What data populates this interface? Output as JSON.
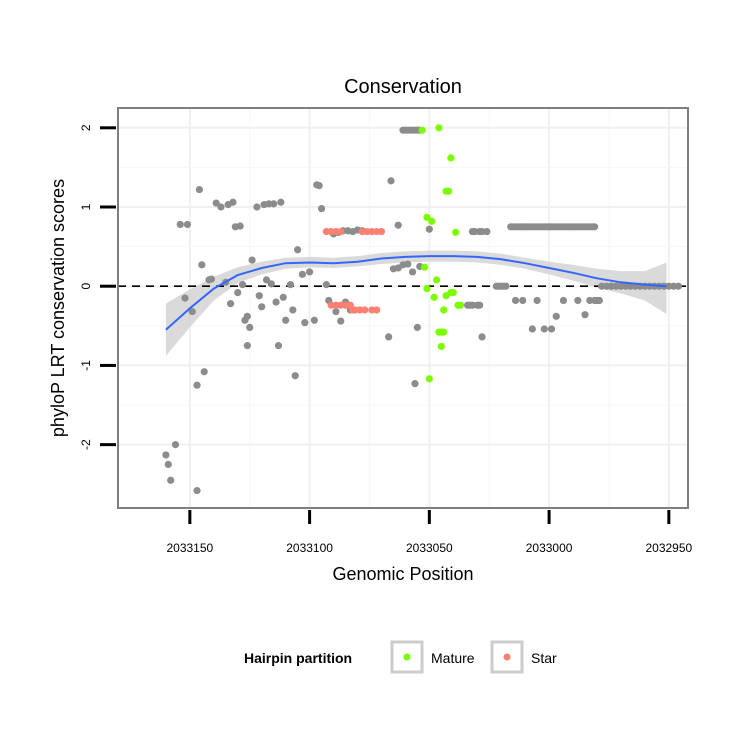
{
  "chart_data": {
    "type": "scatter",
    "title": "Conservation",
    "xlabel": "Genomic Position",
    "ylabel": "phyloP LRT conservation scores",
    "xlim": [
      2033180,
      2032942
    ],
    "ylim": [
      -2.8,
      2.25
    ],
    "x_reversed": true,
    "xticks": [
      2033150,
      2033100,
      2033050,
      2033000,
      2032950
    ],
    "xtick_labels": [
      "2033150",
      "2033100",
      "2033050",
      "2033000",
      "2032950"
    ],
    "yticks": [
      -2,
      -1,
      0,
      1,
      2
    ],
    "ytick_labels": [
      "-2",
      "-1",
      "0",
      "1",
      "2"
    ],
    "grid": true,
    "reference_line": {
      "y": 0,
      "style": "dashed"
    },
    "legend": {
      "title": "Hairpin partition",
      "position": "bottom",
      "entries": [
        {
          "label": "Mature",
          "color": "#7cfc00"
        },
        {
          "label": "Star",
          "color": "#fa8072"
        }
      ]
    },
    "colors": {
      "other": "#8c8c8c",
      "Mature": "#7cfc00",
      "Star": "#fa8072",
      "smooth": "#3366ff",
      "band": "#d3d3d3"
    },
    "series": [
      {
        "name": "Other",
        "points": [
          [
            2033160,
            -2.13
          ],
          [
            2033159,
            -2.25
          ],
          [
            2033158,
            -2.45
          ],
          [
            2033156,
            -2.0
          ],
          [
            2033147,
            -2.58
          ],
          [
            2033154,
            0.78
          ],
          [
            2033151,
            0.78
          ],
          [
            2033152,
            -0.15
          ],
          [
            2033149,
            -0.32
          ],
          [
            2033146,
            1.22
          ],
          [
            2033147,
            -1.25
          ],
          [
            2033144,
            -1.08
          ],
          [
            2033145,
            0.27
          ],
          [
            2033142,
            0.08
          ],
          [
            2033141,
            0.09
          ],
          [
            2033139,
            1.05
          ],
          [
            2033137,
            1.0
          ],
          [
            2033134,
            1.03
          ],
          [
            2033132,
            1.06
          ],
          [
            2033131,
            0.75
          ],
          [
            2033129,
            0.76
          ],
          [
            2033135,
            0.05
          ],
          [
            2033133,
            -0.22
          ],
          [
            2033130,
            -0.08
          ],
          [
            2033128,
            0.02
          ],
          [
            2033127,
            -0.43
          ],
          [
            2033126,
            -0.38
          ],
          [
            2033126,
            -0.75
          ],
          [
            2033125,
            -0.52
          ],
          [
            2033124,
            0.33
          ],
          [
            2033122,
            1.0
          ],
          [
            2033119,
            1.03
          ],
          [
            2033117,
            1.04
          ],
          [
            2033115,
            1.04
          ],
          [
            2033112,
            1.06
          ],
          [
            2033121,
            -0.12
          ],
          [
            2033120,
            -0.26
          ],
          [
            2033118,
            0.08
          ],
          [
            2033116,
            0.03
          ],
          [
            2033114,
            -0.2
          ],
          [
            2033113,
            -0.75
          ],
          [
            2033111,
            -0.14
          ],
          [
            2033110,
            -0.43
          ],
          [
            2033108,
            0.02
          ],
          [
            2033107,
            -0.3
          ],
          [
            2033105,
            0.46
          ],
          [
            2033106,
            -1.13
          ],
          [
            2033103,
            0.15
          ],
          [
            2033102,
            -0.46
          ],
          [
            2033100,
            0.18
          ],
          [
            2033098,
            -0.43
          ],
          [
            2033097,
            1.28
          ],
          [
            2033096,
            1.27
          ],
          [
            2033095,
            0.98
          ],
          [
            2033093,
            0.02
          ],
          [
            2033092,
            -0.18
          ],
          [
            2033090,
            0.66
          ],
          [
            2033088,
            0.68
          ],
          [
            2033086,
            0.7
          ],
          [
            2033084,
            0.7
          ],
          [
            2033082,
            0.69
          ],
          [
            2033089,
            -0.32
          ],
          [
            2033087,
            -0.44
          ],
          [
            2033085,
            -0.2
          ],
          [
            2033083,
            -0.3
          ],
          [
            2033080,
            0.71
          ],
          [
            2033078,
            0.7
          ],
          [
            2033066,
            1.33
          ],
          [
            2033063,
            0.77
          ],
          [
            2033061,
            1.97
          ],
          [
            2033060,
            1.97
          ],
          [
            2033059,
            1.97
          ],
          [
            2033058,
            1.97
          ],
          [
            2033057,
            1.97
          ],
          [
            2033056,
            1.97
          ],
          [
            2033055,
            1.97
          ],
          [
            2033054,
            1.97
          ],
          [
            2033065,
            0.22
          ],
          [
            2033063,
            0.23
          ],
          [
            2033061,
            0.27
          ],
          [
            2033059,
            0.28
          ],
          [
            2033057,
            0.18
          ],
          [
            2033055,
            -0.52
          ],
          [
            2033054,
            0.25
          ],
          [
            2033067,
            -0.64
          ],
          [
            2033056,
            -1.23
          ],
          [
            2033050,
            0.72
          ],
          [
            2033032,
            0.69
          ],
          [
            2033031,
            0.69
          ],
          [
            2033029,
            0.69
          ],
          [
            2033028,
            0.69
          ],
          [
            2033026,
            0.69
          ],
          [
            2033034,
            -0.24
          ],
          [
            2033033,
            -0.24
          ],
          [
            2033032,
            -0.24
          ],
          [
            2033030,
            -0.24
          ],
          [
            2033029,
            -0.24
          ],
          [
            2033028,
            -0.64
          ],
          [
            2033022,
            0.0
          ],
          [
            2033021,
            0.0
          ],
          [
            2033020,
            0.0
          ],
          [
            2033019,
            0.0
          ],
          [
            2033018,
            0.0
          ],
          [
            2033016,
            0.75
          ],
          [
            2033015,
            0.75
          ],
          [
            2033014,
            0.75
          ],
          [
            2033013,
            0.75
          ],
          [
            2033012,
            0.75
          ],
          [
            2033011,
            0.75
          ],
          [
            2033010,
            0.75
          ],
          [
            2033009,
            0.75
          ],
          [
            2033008,
            0.75
          ],
          [
            2033007,
            0.75
          ],
          [
            2033006,
            0.75
          ],
          [
            2033005,
            0.75
          ],
          [
            2033004,
            0.75
          ],
          [
            2033003,
            0.75
          ],
          [
            2033002,
            0.75
          ],
          [
            2033001,
            0.75
          ],
          [
            2033000,
            0.75
          ],
          [
            2032999,
            0.75
          ],
          [
            2032998,
            0.75
          ],
          [
            2032997,
            0.75
          ],
          [
            2032996,
            0.75
          ],
          [
            2032995,
            0.75
          ],
          [
            2032994,
            0.75
          ],
          [
            2032993,
            0.75
          ],
          [
            2032992,
            0.75
          ],
          [
            2032991,
            0.75
          ],
          [
            2032990,
            0.75
          ],
          [
            2032989,
            0.75
          ],
          [
            2032988,
            0.75
          ],
          [
            2032987,
            0.75
          ],
          [
            2032986,
            0.75
          ],
          [
            2032985,
            0.75
          ],
          [
            2032984,
            0.75
          ],
          [
            2032983,
            0.75
          ],
          [
            2032982,
            0.75
          ],
          [
            2032981,
            0.75
          ],
          [
            2033014,
            -0.18
          ],
          [
            2033011,
            -0.18
          ],
          [
            2033007,
            -0.54
          ],
          [
            2033005,
            -0.18
          ],
          [
            2033002,
            -0.54
          ],
          [
            2032999,
            -0.54
          ],
          [
            2032997,
            -0.38
          ],
          [
            2032994,
            -0.18
          ],
          [
            2032988,
            -0.18
          ],
          [
            2032985,
            -0.36
          ],
          [
            2032983,
            -0.18
          ],
          [
            2032981,
            -0.18
          ],
          [
            2032980,
            -0.18
          ],
          [
            2032979,
            -0.18
          ],
          [
            2032978,
            0.0
          ],
          [
            2032976,
            0.0
          ],
          [
            2032974,
            0.0
          ],
          [
            2032972,
            0.0
          ],
          [
            2032970,
            0.0
          ],
          [
            2032968,
            0.0
          ],
          [
            2032966,
            0.0
          ],
          [
            2032964,
            0.0
          ],
          [
            2032962,
            0.0
          ],
          [
            2032960,
            0.0
          ],
          [
            2032958,
            0.0
          ],
          [
            2032956,
            0.0
          ],
          [
            2032954,
            0.0
          ],
          [
            2032952,
            0.0
          ],
          [
            2032950,
            0.0
          ],
          [
            2032948,
            0.0
          ],
          [
            2032946,
            0.0
          ]
        ]
      },
      {
        "name": "Mature",
        "points": [
          [
            2033053,
            1.97
          ],
          [
            2033046,
            2.0
          ],
          [
            2033041,
            1.62
          ],
          [
            2033043,
            1.2
          ],
          [
            2033042,
            1.2
          ],
          [
            2033051,
            0.87
          ],
          [
            2033049,
            0.82
          ],
          [
            2033039,
            0.68
          ],
          [
            2033052,
            0.24
          ],
          [
            2033047,
            0.08
          ],
          [
            2033051,
            -0.03
          ],
          [
            2033048,
            -0.14
          ],
          [
            2033041,
            -0.08
          ],
          [
            2033040,
            -0.08
          ],
          [
            2033043,
            -0.12
          ],
          [
            2033038,
            -0.24
          ],
          [
            2033037,
            -0.24
          ],
          [
            2033044,
            -0.3
          ],
          [
            2033046,
            -0.58
          ],
          [
            2033045,
            -0.58
          ],
          [
            2033044,
            -0.58
          ],
          [
            2033045,
            -0.76
          ],
          [
            2033050,
            -1.17
          ]
        ]
      },
      {
        "name": "Star",
        "points": [
          [
            2033093,
            0.69
          ],
          [
            2033091,
            0.69
          ],
          [
            2033089,
            0.69
          ],
          [
            2033087,
            0.69
          ],
          [
            2033078,
            0.69
          ],
          [
            2033076,
            0.69
          ],
          [
            2033074,
            0.69
          ],
          [
            2033072,
            0.69
          ],
          [
            2033070,
            0.69
          ],
          [
            2033091,
            -0.24
          ],
          [
            2033089,
            -0.24
          ],
          [
            2033087,
            -0.24
          ],
          [
            2033085,
            -0.24
          ],
          [
            2033083,
            -0.24
          ],
          [
            2033082,
            -0.3
          ],
          [
            2033081,
            -0.3
          ],
          [
            2033079,
            -0.3
          ],
          [
            2033077,
            -0.3
          ],
          [
            2033074,
            -0.3
          ],
          [
            2033072,
            -0.3
          ]
        ]
      }
    ],
    "smooth_fit": {
      "method": "loess",
      "points": [
        [
          2033160,
          -0.55
        ],
        [
          2033150,
          -0.28
        ],
        [
          2033140,
          -0.03
        ],
        [
          2033130,
          0.14
        ],
        [
          2033120,
          0.23
        ],
        [
          2033110,
          0.29
        ],
        [
          2033100,
          0.3
        ],
        [
          2033090,
          0.29
        ],
        [
          2033080,
          0.31
        ],
        [
          2033070,
          0.35
        ],
        [
          2033060,
          0.37
        ],
        [
          2033050,
          0.38
        ],
        [
          2033040,
          0.38
        ],
        [
          2033030,
          0.37
        ],
        [
          2033020,
          0.34
        ],
        [
          2033010,
          0.29
        ],
        [
          2033000,
          0.23
        ],
        [
          2032990,
          0.17
        ],
        [
          2032980,
          0.1
        ],
        [
          2032970,
          0.05
        ],
        [
          2032960,
          0.02
        ],
        [
          2032951,
          0.0
        ]
      ],
      "lower": [
        [
          2033160,
          -0.88
        ],
        [
          2033150,
          -0.52
        ],
        [
          2033140,
          -0.18
        ],
        [
          2033130,
          0.04
        ],
        [
          2033120,
          0.15
        ],
        [
          2033110,
          0.22
        ],
        [
          2033100,
          0.24
        ],
        [
          2033090,
          0.23
        ],
        [
          2033080,
          0.25
        ],
        [
          2033070,
          0.28
        ],
        [
          2033060,
          0.3
        ],
        [
          2033050,
          0.31
        ],
        [
          2033040,
          0.31
        ],
        [
          2033030,
          0.3
        ],
        [
          2033020,
          0.27
        ],
        [
          2033010,
          0.22
        ],
        [
          2033000,
          0.15
        ],
        [
          2032990,
          0.07
        ],
        [
          2032980,
          -0.02
        ],
        [
          2032970,
          -0.09
        ],
        [
          2032960,
          -0.18
        ],
        [
          2032951,
          -0.35
        ]
      ],
      "upper": [
        [
          2033160,
          -0.22
        ],
        [
          2033150,
          -0.04
        ],
        [
          2033140,
          0.12
        ],
        [
          2033130,
          0.24
        ],
        [
          2033120,
          0.31
        ],
        [
          2033110,
          0.36
        ],
        [
          2033100,
          0.37
        ],
        [
          2033090,
          0.36
        ],
        [
          2033080,
          0.38
        ],
        [
          2033070,
          0.42
        ],
        [
          2033060,
          0.44
        ],
        [
          2033050,
          0.45
        ],
        [
          2033040,
          0.45
        ],
        [
          2033030,
          0.44
        ],
        [
          2033020,
          0.41
        ],
        [
          2033010,
          0.36
        ],
        [
          2033000,
          0.31
        ],
        [
          2032990,
          0.27
        ],
        [
          2032980,
          0.22
        ],
        [
          2032970,
          0.19
        ],
        [
          2032960,
          0.19
        ],
        [
          2032951,
          0.3
        ]
      ]
    }
  }
}
